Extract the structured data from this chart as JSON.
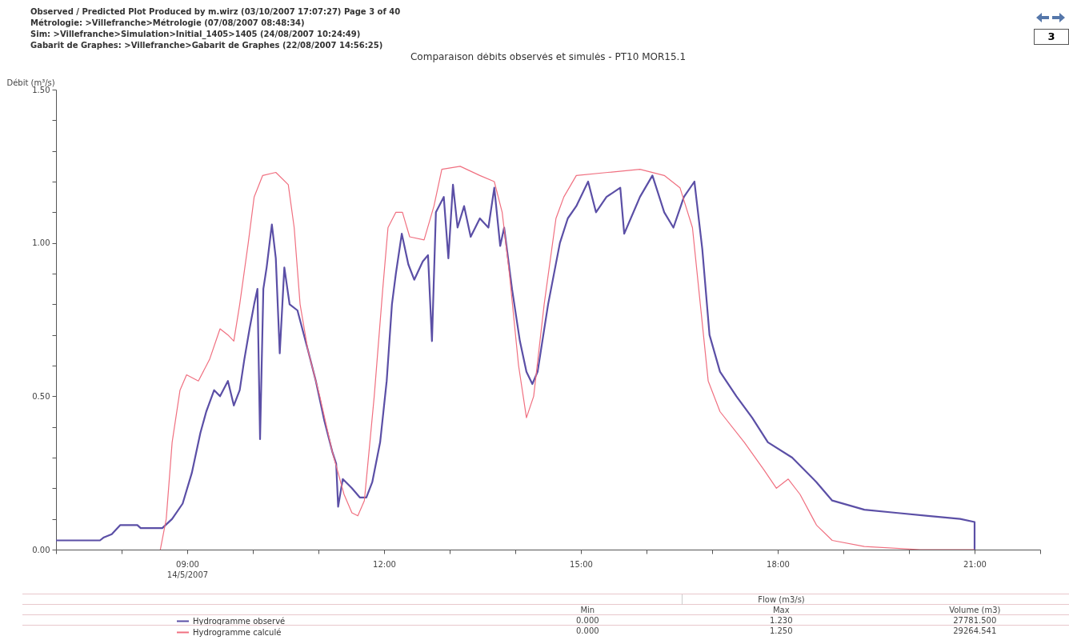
{
  "chart_data": {
    "type": "line",
    "title": "Comparaison débits observés et simulés - PT10 MOR15.1",
    "ylabel": "Débit (m³/s)",
    "annotations": [
      "Observed / Predicted Plot Produced by m.wirz (03/10/2007 17:07:27) Page 3 of 40",
      "Métrologie: >Villefranche>Métrologie (07/08/2007 08:48:34)",
      "Sim: >Villefranche>Simulation>Initial_1405>1405 (24/08/2007 10:24:49)",
      "Gabarit de Graphes: >Villefranche>Gabarit de Graphes (22/08/2007 14:56:25)",
      "3",
      "Flow (m3/s)",
      "Min",
      "Max",
      "Volume (m3)",
      "0.000",
      "1.230",
      "27781.500",
      "0.000",
      "1.250",
      "29264.541"
    ],
    "xlim": [
      7,
      22
    ],
    "xticks": [
      {
        "value": 7,
        "label": null
      },
      {
        "value": 8,
        "label": null
      },
      {
        "value": 9,
        "label": "09:00\n14/5/2007"
      },
      {
        "value": 10,
        "label": null
      },
      {
        "value": 11,
        "label": null
      },
      {
        "value": 12,
        "label": "12:00"
      },
      {
        "value": 13,
        "label": null
      },
      {
        "value": 14,
        "label": null
      },
      {
        "value": 15,
        "label": "15:00"
      },
      {
        "value": 16,
        "label": null
      },
      {
        "value": 17,
        "label": null
      },
      {
        "value": 18,
        "label": "18:00"
      },
      {
        "value": 19,
        "label": null
      },
      {
        "value": 20,
        "label": null
      },
      {
        "value": 21,
        "label": "21:00"
      },
      {
        "value": 22,
        "label": null
      }
    ],
    "ylim": [
      0,
      1.5
    ],
    "yticks": [
      {
        "value": 0,
        "label": "0.00"
      },
      {
        "value": 0.1,
        "label": null
      },
      {
        "value": 0.2,
        "label": null
      },
      {
        "value": 0.3,
        "label": null
      },
      {
        "value": 0.4,
        "label": null
      },
      {
        "value": 0.5,
        "label": "0.50"
      },
      {
        "value": 0.6,
        "label": null
      },
      {
        "value": 0.7,
        "label": null
      },
      {
        "value": 0.8,
        "label": null
      },
      {
        "value": 0.9,
        "label": null
      },
      {
        "value": 1,
        "label": "1.00"
      },
      {
        "value": 1.1,
        "label": null
      },
      {
        "value": 1.2,
        "label": null
      },
      {
        "value": 1.3,
        "label": null
      },
      {
        "value": 1.4,
        "label": null
      },
      {
        "value": 1.5,
        "label": "1.50"
      }
    ],
    "grid": false,
    "legend": "bottom",
    "series": [
      {
        "name": "Hydrogramme observé",
        "color": "#5b4fa6",
        "x": [
          7.0,
          7.67,
          7.73,
          7.85,
          7.98,
          8.24,
          8.29,
          8.62,
          8.77,
          8.93,
          9.07,
          9.2,
          9.29,
          9.41,
          9.5,
          9.62,
          9.71,
          9.8,
          9.87,
          9.95,
          10.02,
          10.07,
          10.11,
          10.16,
          10.21,
          10.29,
          10.35,
          10.41,
          10.48,
          10.56,
          10.68,
          10.84,
          10.96,
          11.09,
          11.21,
          11.27,
          11.3,
          11.37,
          11.51,
          11.63,
          11.73,
          11.82,
          11.94,
          12.04,
          12.12,
          12.18,
          12.27,
          12.37,
          12.46,
          12.59,
          12.67,
          12.73,
          12.79,
          12.91,
          12.98,
          13.05,
          13.12,
          13.22,
          13.32,
          13.46,
          13.59,
          13.68,
          13.77,
          13.83,
          13.95,
          14.07,
          14.17,
          14.26,
          14.34,
          14.5,
          14.68,
          14.8,
          14.93,
          15.11,
          15.23,
          15.39,
          15.6,
          15.66,
          15.9,
          16.09,
          16.27,
          16.41,
          16.57,
          16.73,
          16.85,
          16.96,
          17.12,
          17.37,
          17.61,
          17.85,
          18.22,
          18.59,
          18.83,
          19.32,
          19.8,
          20.29,
          20.78,
          21.0,
          21.0
        ],
        "values": [
          0.03,
          0.03,
          0.04,
          0.05,
          0.08,
          0.08,
          0.07,
          0.07,
          0.1,
          0.15,
          0.25,
          0.38,
          0.45,
          0.52,
          0.5,
          0.55,
          0.47,
          0.52,
          0.62,
          0.72,
          0.8,
          0.85,
          0.36,
          0.85,
          0.92,
          1.06,
          0.95,
          0.64,
          0.92,
          0.8,
          0.78,
          0.65,
          0.55,
          0.42,
          0.32,
          0.28,
          0.14,
          0.23,
          0.2,
          0.17,
          0.17,
          0.22,
          0.35,
          0.55,
          0.8,
          0.9,
          1.03,
          0.93,
          0.88,
          0.94,
          0.96,
          0.68,
          1.1,
          1.15,
          0.95,
          1.19,
          1.05,
          1.12,
          1.02,
          1.08,
          1.05,
          1.18,
          0.99,
          1.05,
          0.85,
          0.68,
          0.58,
          0.54,
          0.58,
          0.8,
          1.0,
          1.08,
          1.12,
          1.2,
          1.1,
          1.15,
          1.18,
          1.03,
          1.15,
          1.22,
          1.1,
          1.05,
          1.15,
          1.2,
          0.98,
          0.7,
          0.58,
          0.5,
          0.43,
          0.35,
          0.3,
          0.22,
          0.16,
          0.13,
          0.12,
          0.11,
          0.1,
          0.09,
          0.0
        ]
      },
      {
        "name": "Hydrogramme calculé",
        "color": "#f07080",
        "x": [
          8.59,
          8.68,
          8.77,
          8.89,
          8.99,
          9.17,
          9.34,
          9.5,
          9.62,
          9.71,
          9.8,
          9.93,
          10.02,
          10.15,
          10.35,
          10.54,
          10.63,
          10.72,
          10.84,
          11.02,
          11.21,
          11.39,
          11.51,
          11.6,
          11.7,
          11.85,
          11.98,
          12.06,
          12.18,
          12.28,
          12.39,
          12.61,
          12.76,
          12.88,
          13.16,
          13.46,
          13.68,
          13.8,
          13.91,
          14.05,
          14.17,
          14.28,
          14.44,
          14.62,
          14.74,
          14.93,
          15.41,
          15.9,
          16.27,
          16.51,
          16.7,
          16.82,
          16.94,
          17.12,
          17.49,
          17.79,
          17.98,
          18.16,
          18.34,
          18.59,
          18.83,
          19.32,
          20.17,
          21.0
        ],
        "values": [
          0.0,
          0.1,
          0.35,
          0.52,
          0.57,
          0.55,
          0.62,
          0.72,
          0.7,
          0.68,
          0.8,
          1.0,
          1.15,
          1.22,
          1.23,
          1.19,
          1.05,
          0.8,
          0.65,
          0.5,
          0.32,
          0.18,
          0.12,
          0.11,
          0.16,
          0.5,
          0.85,
          1.05,
          1.1,
          1.1,
          1.02,
          1.01,
          1.12,
          1.24,
          1.25,
          1.22,
          1.2,
          1.1,
          0.9,
          0.6,
          0.43,
          0.5,
          0.8,
          1.08,
          1.15,
          1.22,
          1.23,
          1.24,
          1.22,
          1.18,
          1.05,
          0.8,
          0.55,
          0.45,
          0.35,
          0.26,
          0.2,
          0.23,
          0.18,
          0.08,
          0.03,
          0.01,
          0.0,
          0.0
        ]
      }
    ]
  }
}
